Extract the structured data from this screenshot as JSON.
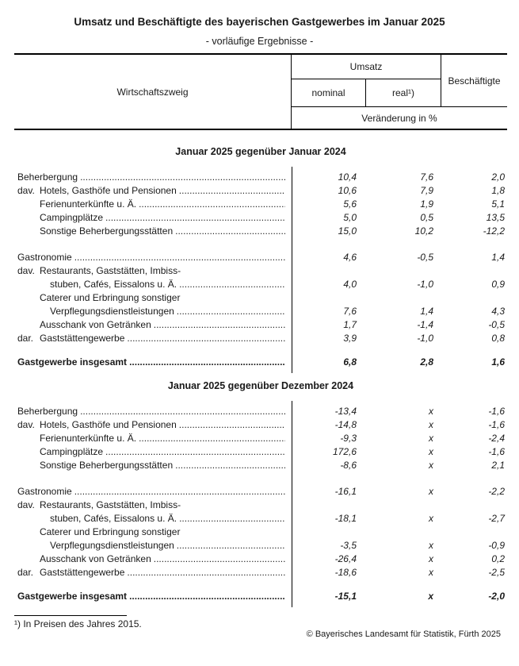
{
  "page": {
    "title": "Umsatz und Beschäftigte des bayerischen Gastgewerbes im Januar 2025",
    "subtitle": "- vorläufige Ergebnisse -"
  },
  "table_header": {
    "branch": "Wirtschaftszweig",
    "umsatz": "Umsatz",
    "nominal": "nominal",
    "real": "real¹)",
    "beschaeftigte": "Beschäftigte",
    "unit": "Veränderung in %"
  },
  "sections": [
    {
      "heading": "Januar 2025 gegenüber Januar 2024",
      "groups": [
        {
          "rows": [
            {
              "label": "Beherbergung",
              "indent": 0,
              "leaders": true,
              "values": [
                "10,4",
                "7,6",
                "2,0"
              ]
            },
            {
              "prefix": "dav.",
              "label": "Hotels, Gasthöfe und Pensionen",
              "indent": 1,
              "leaders": true,
              "values": [
                "10,6",
                "7,9",
                "1,8"
              ]
            },
            {
              "label": "Ferienunterkünfte u. Ä.",
              "indent": 1,
              "leaders": true,
              "values": [
                "5,6",
                "1,9",
                "5,1"
              ]
            },
            {
              "label": "Campingplätze",
              "indent": 1,
              "leaders": true,
              "values": [
                "5,0",
                "0,5",
                "13,5"
              ]
            },
            {
              "label": "Sonstige Beherbergungsstätten",
              "indent": 1,
              "leaders": true,
              "values": [
                "15,0",
                "10,2",
                "-12,2"
              ]
            }
          ]
        },
        {
          "rows": [
            {
              "label": "Gastronomie",
              "indent": 0,
              "leaders": true,
              "values": [
                "4,6",
                "-0,5",
                "1,4"
              ]
            },
            {
              "prefix": "dav.",
              "label": "Restaurants, Gaststätten, Imbiss-",
              "indent": 1,
              "leaders": false,
              "values": null
            },
            {
              "label": "stuben, Cafés, Eissalons u. Ä.",
              "indent": 2,
              "leaders": true,
              "values": [
                "4,0",
                "-1,0",
                "0,9"
              ]
            },
            {
              "label": "Caterer und Erbringung sonstiger",
              "indent": 1,
              "leaders": false,
              "values": null
            },
            {
              "label": "Verpflegungsdienstleistungen",
              "indent": 2,
              "leaders": true,
              "values": [
                "7,6",
                "1,4",
                "4,3"
              ]
            },
            {
              "label": "Ausschank von Getränken",
              "indent": 1,
              "leaders": true,
              "values": [
                "1,7",
                "-1,4",
                "-0,5"
              ]
            },
            {
              "prefix": "dar.",
              "label": "Gaststättengewerbe",
              "indent": 1,
              "leaders": true,
              "values": [
                "3,9",
                "-1,0",
                "0,8"
              ]
            }
          ]
        },
        {
          "total": true,
          "rows": [
            {
              "label": "Gastgewerbe insgesamt",
              "indent": 0,
              "leaders": true,
              "bold": true,
              "values": [
                "6,8",
                "2,8",
                "1,6"
              ]
            }
          ]
        }
      ]
    },
    {
      "heading": "Januar 2025 gegenüber Dezember 2024",
      "groups": [
        {
          "rows": [
            {
              "label": "Beherbergung",
              "indent": 0,
              "leaders": true,
              "values": [
                "-13,4",
                "x",
                "-1,6"
              ]
            },
            {
              "prefix": "dav.",
              "label": "Hotels, Gasthöfe und Pensionen",
              "indent": 1,
              "leaders": true,
              "values": [
                "-14,8",
                "x",
                "-1,6"
              ]
            },
            {
              "label": "Ferienunterkünfte u. Ä.",
              "indent": 1,
              "leaders": true,
              "values": [
                "-9,3",
                "x",
                "-2,4"
              ]
            },
            {
              "label": "Campingplätze",
              "indent": 1,
              "leaders": true,
              "values": [
                "172,6",
                "x",
                "-1,6"
              ]
            },
            {
              "label": "Sonstige Beherbergungsstätten",
              "indent": 1,
              "leaders": true,
              "values": [
                "-8,6",
                "x",
                "2,1"
              ]
            }
          ]
        },
        {
          "rows": [
            {
              "label": "Gastronomie",
              "indent": 0,
              "leaders": true,
              "values": [
                "-16,1",
                "x",
                "-2,2"
              ]
            },
            {
              "prefix": "dav.",
              "label": "Restaurants, Gaststätten, Imbiss-",
              "indent": 1,
              "leaders": false,
              "values": null
            },
            {
              "label": "stuben, Cafés, Eissalons u. Ä.",
              "indent": 2,
              "leaders": true,
              "values": [
                "-18,1",
                "x",
                "-2,7"
              ]
            },
            {
              "label": "Caterer und Erbringung sonstiger",
              "indent": 1,
              "leaders": false,
              "values": null
            },
            {
              "label": "Verpflegungsdienstleistungen",
              "indent": 2,
              "leaders": true,
              "values": [
                "-3,5",
                "x",
                "-0,9"
              ]
            },
            {
              "label": "Ausschank von Getränken",
              "indent": 1,
              "leaders": true,
              "values": [
                "-26,4",
                "x",
                "0,2"
              ]
            },
            {
              "prefix": "dar.",
              "label": "Gaststättengewerbe",
              "indent": 1,
              "leaders": true,
              "values": [
                "-18,6",
                "x",
                "-2,5"
              ]
            }
          ]
        },
        {
          "total": true,
          "rows": [
            {
              "label": "Gastgewerbe insgesamt",
              "indent": 0,
              "leaders": true,
              "bold": true,
              "values": [
                "-15,1",
                "x",
                "-2,0"
              ]
            }
          ]
        }
      ]
    }
  ],
  "footnote": {
    "marker": "¹)",
    "text": "In Preisen des Jahres 2015."
  },
  "copyright": "© Bayerisches Landesamt für Statistik, Fürth 2025"
}
